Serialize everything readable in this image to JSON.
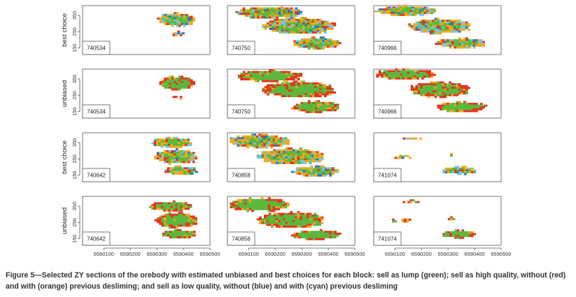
{
  "chart_data": {
    "type": "heatmap",
    "caption": "Figure 5—Selected ZY sections of the orebody with estimated unbiased and best choices for each block: sell as lump (green); sell as high quality, without (red) and with (orange) previous desliming; and sell as low quality, without (blue) and with (cyan) previous desliming",
    "x_ticks": [
      "6590100",
      "6590200",
      "6590300",
      "6590400",
      "6590500"
    ],
    "x_tick_values": [
      6590100,
      6590200,
      6590300,
      6590400,
      6590500
    ],
    "xlim": [
      6590020,
      6590500
    ],
    "y_ticks": [
      "150",
      "250",
      "350"
    ],
    "y_tick_values": [
      150,
      250,
      350
    ],
    "ylim": [
      110,
      410
    ],
    "classes": [
      {
        "name": "sell as lump",
        "color": "#5cb83c"
      },
      {
        "name": "sell as high quality, without previous desliming",
        "color": "#e8321e"
      },
      {
        "name": "sell as high quality, with previous desliming",
        "color": "#f5a81c"
      },
      {
        "name": "sell as low quality, without previous desliming",
        "color": "#2f6fbf"
      },
      {
        "name": "sell as low quality, with previous desliming",
        "color": "#72c8e8"
      }
    ],
    "rows": [
      {
        "label": "best choice",
        "mode": "best",
        "sections": [
          "740534",
          "740750",
          "740966"
        ]
      },
      {
        "label": "unbiased",
        "mode": "unbiased",
        "sections": [
          "740534",
          "740750",
          "740966"
        ]
      },
      {
        "label": "best choice",
        "mode": "best",
        "sections": [
          "740642",
          "740858",
          "741074"
        ]
      },
      {
        "label": "unbiased",
        "mode": "unbiased",
        "sections": [
          "740642",
          "740858",
          "741074"
        ]
      }
    ],
    "section_shapes": {
      "740534": [
        {
          "x1": 6590300,
          "x2": 6590440,
          "yc": 330,
          "h": 80,
          "kind": "main"
        },
        {
          "x1": 6590350,
          "x2": 6590400,
          "yc": 245,
          "h": 25,
          "kind": "edge"
        }
      ],
      "740750": [
        {
          "x1": 6590050,
          "x2": 6590300,
          "yc": 375,
          "h": 70,
          "kind": "main"
        },
        {
          "x1": 6590150,
          "x2": 6590420,
          "yc": 290,
          "h": 100,
          "kind": "main"
        },
        {
          "x1": 6590260,
          "x2": 6590440,
          "yc": 185,
          "h": 70,
          "kind": "main"
        }
      ],
      "740966": [
        {
          "x1": 6590020,
          "x2": 6590250,
          "yc": 385,
          "h": 60,
          "kind": "main"
        },
        {
          "x1": 6590150,
          "x2": 6590380,
          "yc": 290,
          "h": 90,
          "kind": "main"
        },
        {
          "x1": 6590250,
          "x2": 6590440,
          "yc": 185,
          "h": 60,
          "kind": "main"
        }
      ],
      "740642": [
        {
          "x1": 6590270,
          "x2": 6590430,
          "yc": 355,
          "h": 60,
          "kind": "main"
        },
        {
          "x1": 6590290,
          "x2": 6590450,
          "yc": 270,
          "h": 90,
          "kind": "main"
        },
        {
          "x1": 6590320,
          "x2": 6590450,
          "yc": 185,
          "h": 50,
          "kind": "main"
        }
      ],
      "740858": [
        {
          "x1": 6590020,
          "x2": 6590250,
          "yc": 365,
          "h": 80,
          "kind": "main"
        },
        {
          "x1": 6590130,
          "x2": 6590380,
          "yc": 270,
          "h": 100,
          "kind": "main"
        },
        {
          "x1": 6590260,
          "x2": 6590440,
          "yc": 180,
          "h": 60,
          "kind": "main"
        }
      ],
      "741074": [
        {
          "x1": 6590120,
          "x2": 6590200,
          "yc": 385,
          "h": 15,
          "kind": "edge"
        },
        {
          "x1": 6590080,
          "x2": 6590160,
          "yc": 270,
          "h": 30,
          "kind": "edge"
        },
        {
          "x1": 6590290,
          "x2": 6590320,
          "yc": 280,
          "h": 15,
          "kind": "edge"
        },
        {
          "x1": 6590270,
          "x2": 6590400,
          "yc": 185,
          "h": 45,
          "kind": "main"
        }
      ]
    }
  }
}
